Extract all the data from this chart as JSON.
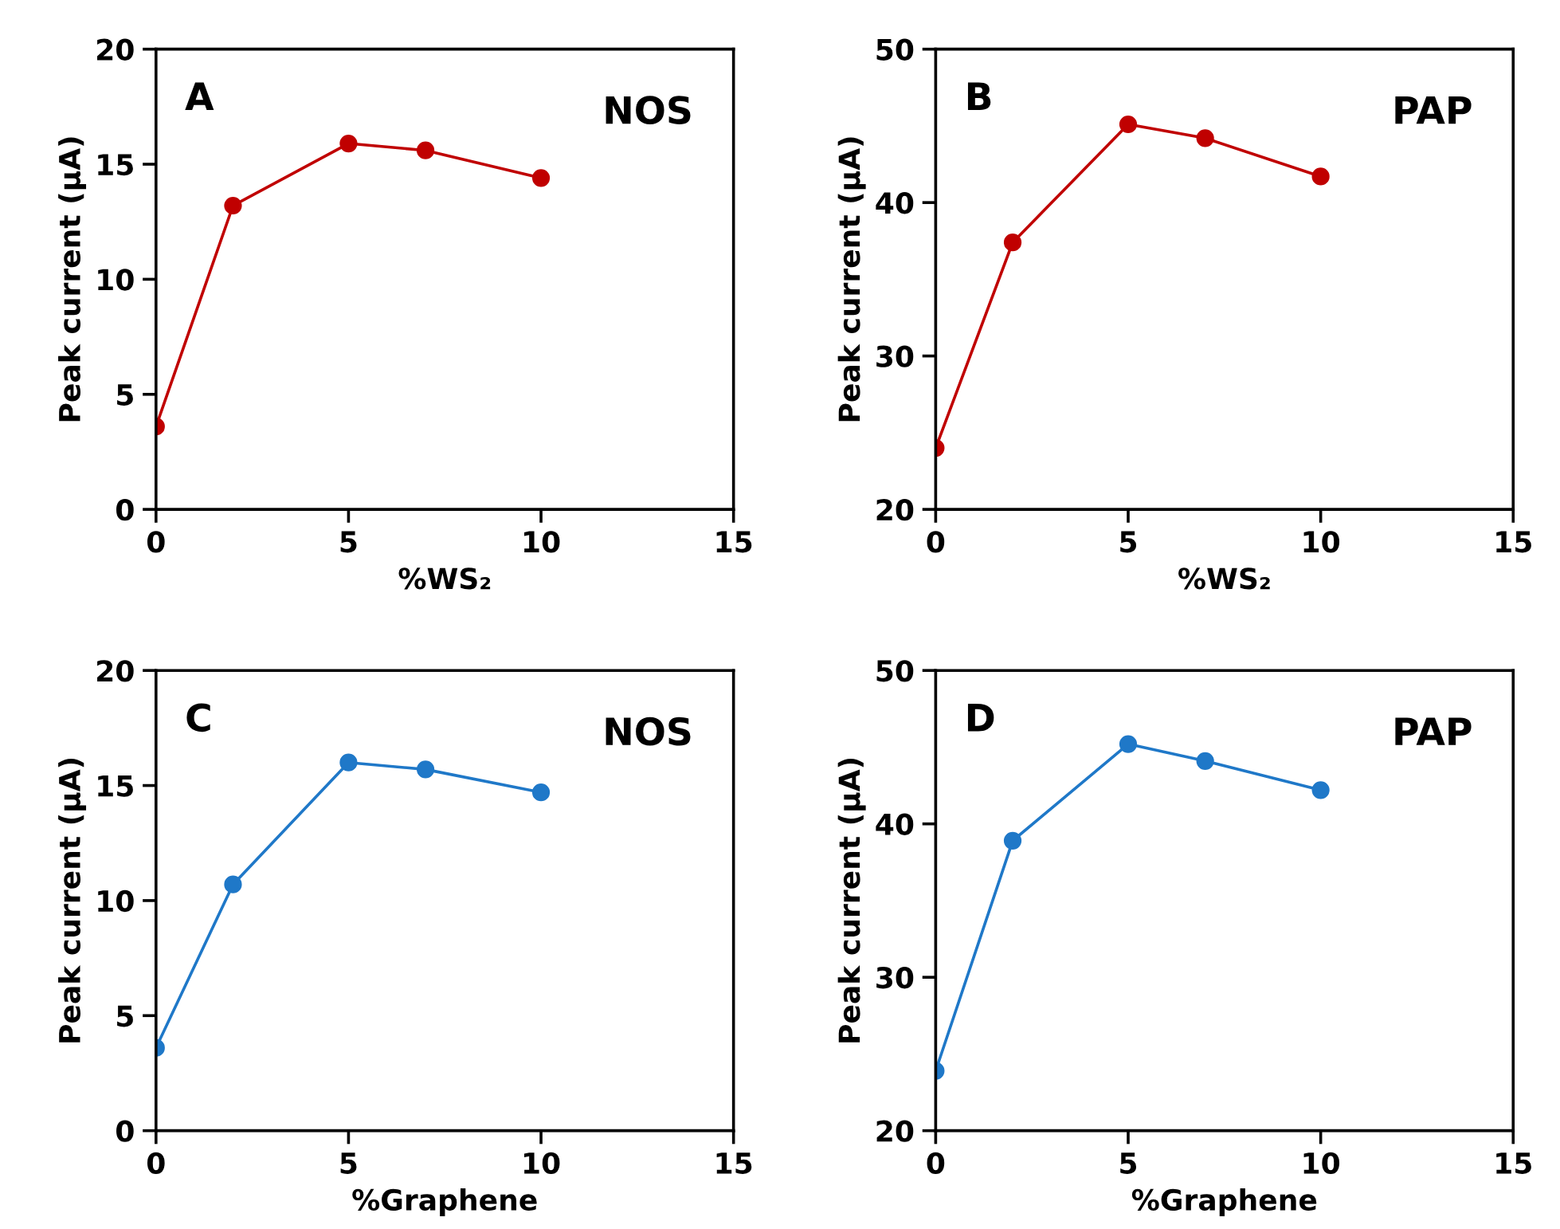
{
  "chart_data": [
    {
      "type": "line",
      "x": [
        0,
        2,
        5,
        7,
        10
      ],
      "xlabel": "%WS₂",
      "ylabel": "Peak current (μA)",
      "annotations": [
        "A",
        "NOS"
      ],
      "series": [
        {
          "color": "#c00000",
          "values": [
            3.6,
            13.2,
            15.9,
            15.6,
            14.4
          ]
        }
      ],
      "xlim": [
        0,
        15
      ],
      "xticks": [
        0,
        5,
        10,
        15
      ],
      "ylim": [
        0,
        20
      ],
      "yticks": [
        0,
        5,
        10,
        15,
        20
      ],
      "grid": false,
      "marker": "circle",
      "line_style": "solid"
    },
    {
      "type": "line",
      "x": [
        0,
        2,
        5,
        7,
        10
      ],
      "xlabel": "%WS₂",
      "ylabel": "Peak current (μA)",
      "annotations": [
        "B",
        "PAP"
      ],
      "series": [
        {
          "color": "#c00000",
          "values": [
            24.0,
            37.4,
            45.1,
            44.2,
            41.7
          ]
        }
      ],
      "xlim": [
        0,
        15
      ],
      "xticks": [
        0,
        5,
        10,
        15
      ],
      "ylim": [
        20,
        50
      ],
      "yticks": [
        20,
        30,
        40,
        50
      ],
      "grid": false,
      "marker": "circle",
      "line_style": "solid"
    },
    {
      "type": "line",
      "x": [
        0,
        2,
        5,
        7,
        10
      ],
      "xlabel": "%Graphene",
      "ylabel": "Peak current (μA)",
      "annotations": [
        "C",
        "NOS"
      ],
      "series": [
        {
          "color": "#1f78c8",
          "values": [
            3.6,
            10.7,
            16.0,
            15.7,
            14.7
          ]
        }
      ],
      "xlim": [
        0,
        15
      ],
      "xticks": [
        0,
        5,
        10,
        15
      ],
      "ylim": [
        0,
        20
      ],
      "yticks": [
        0,
        5,
        10,
        15,
        20
      ],
      "grid": false,
      "marker": "circle",
      "line_style": "solid"
    },
    {
      "type": "line",
      "x": [
        0,
        2,
        5,
        7,
        10
      ],
      "xlabel": "%Graphene",
      "ylabel": "Peak current (μA)",
      "annotations": [
        "D",
        "PAP"
      ],
      "series": [
        {
          "color": "#1f78c8",
          "values": [
            23.9,
            38.9,
            45.2,
            44.1,
            42.2
          ]
        }
      ],
      "xlim": [
        0,
        15
      ],
      "xticks": [
        0,
        5,
        10,
        15
      ],
      "ylim": [
        20,
        50
      ],
      "yticks": [
        20,
        30,
        40,
        50
      ],
      "grid": false,
      "marker": "circle",
      "line_style": "solid"
    }
  ]
}
